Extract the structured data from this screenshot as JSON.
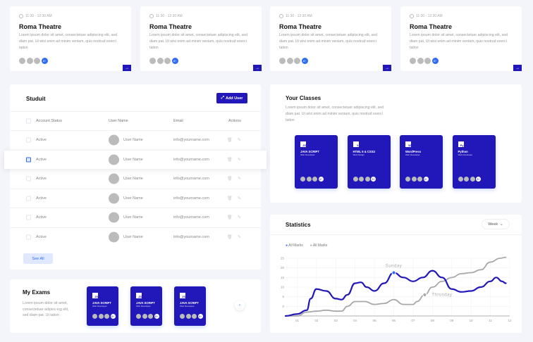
{
  "events": [
    {
      "time": "11:30 - 12:30 AM",
      "title": "Roma Theatre",
      "text": "Lorem ipsum dolor sit amet, consectetuer adipiscing elit, sed diam pat. Ut wisi enim ad minim veniam, quis nostrud exerci tation",
      "more": "8+"
    },
    {
      "time": "11:30 - 12:30 AM",
      "title": "Roma Theatre",
      "text": "Lorem ipsum dolor sit amet, consectetuer adipiscing elit, sed diam pat. Ut wisi enim ad minim veniam, quis nostrud exerci tation",
      "more": "8+"
    },
    {
      "time": "11:30 - 12:30 AM",
      "title": "Roma Theatre",
      "text": "Lorem ipsum dolor sit amet, consectetuer adipiscing elit, sed diam pat. Ut wisi enim ad minim veniam, quis nostrud exerci tation",
      "more": "8+"
    },
    {
      "time": "11:30 - 12:30 AM",
      "title": "Roma Theatre",
      "text": "Lorem ipsum dolor sit amet, consectetuer adipiscing elit, sed diam pat. Ut wisi enim ad minim veniam, quis nostrud exerci tation",
      "more": "8+"
    }
  ],
  "users": {
    "title": "Studuit",
    "add_label": "Add User",
    "columns": [
      "Account Status",
      "User Name",
      "Email",
      "Actions"
    ],
    "rows": [
      {
        "status": "Active",
        "name": "User Name",
        "email": "info@yourname.com",
        "checked": false
      },
      {
        "status": "Active",
        "name": "User Name",
        "email": "info@yourname.com",
        "checked": true
      },
      {
        "status": "Active",
        "name": "User Name",
        "email": "info@yourname.com",
        "checked": false
      },
      {
        "status": "Active",
        "name": "User Name",
        "email": "info@yourname.com",
        "checked": false
      },
      {
        "status": "Active",
        "name": "User Name",
        "email": "info@yourname.com",
        "checked": false
      },
      {
        "status": "Active",
        "name": "User Name",
        "email": "info@yourname.com",
        "checked": false
      }
    ],
    "see_all": "See All"
  },
  "exams": {
    "title": "My Exams",
    "text": "Lorem ipsum dolor sit amet, consectetuer adipisc-ing elit, sed diam pat. Ut tation",
    "cards": [
      {
        "name": "JAVA SCRIPT",
        "sub": "Web Developer",
        "logo": "JS"
      },
      {
        "name": "JAVA SCRIPT",
        "sub": "Web Developer",
        "logo": "JS"
      },
      {
        "name": "JAVA SCRIPT",
        "sub": "Web Developer",
        "logo": "JS"
      }
    ]
  },
  "classes": {
    "title": "Your Classes",
    "text": "Lorem ipsum dolor sit amet, consectetuer adipiscing elit, sed diam pat. Ut wisi enim ad minim veniam, quis nostrud exerci tation",
    "cards": [
      {
        "name": "JAVA SCRIPT",
        "sub": "Web Developer",
        "logo": "JS"
      },
      {
        "name": "HTML 5 & CSS3",
        "sub": "Web Design",
        "logo": "5"
      },
      {
        "name": "WordPress",
        "sub": "Web Developer",
        "logo": "W"
      },
      {
        "name": "Python",
        "sub": "Web Developer",
        "logo": "Py"
      }
    ]
  },
  "stats": {
    "title": "Statistics",
    "period": "Week"
  },
  "colors": {
    "accent": "#2217b8",
    "blue": "#2f6cf5",
    "gray": "#a8a8a8"
  },
  "chart_data": {
    "type": "line",
    "xticks": [
      "01",
      "02",
      "03",
      "04",
      "05",
      "06",
      "07",
      "08",
      "09",
      "10",
      "11",
      "12"
    ],
    "yticks": [
      0,
      5,
      10,
      15,
      20,
      25
    ],
    "ylim": [
      -5,
      25
    ],
    "xlim": [
      0.4,
      12
    ],
    "grid": true,
    "legend": "top-left",
    "series": [
      {
        "name": "All Marks",
        "color": "#2217b8",
        "points": [
          [
            0.4,
            -5
          ],
          [
            1,
            -4
          ],
          [
            1.5,
            -2
          ],
          [
            1.7,
            4
          ],
          [
            2,
            9
          ],
          [
            2.5,
            8
          ],
          [
            3,
            4
          ],
          [
            3.3,
            3.5
          ],
          [
            3.6,
            6
          ],
          [
            4,
            12
          ],
          [
            4.3,
            12.5
          ],
          [
            4.6,
            10
          ],
          [
            5,
            8
          ],
          [
            5.5,
            12
          ],
          [
            6,
            17.5
          ],
          [
            6.5,
            15
          ],
          [
            7,
            13
          ],
          [
            7.5,
            15
          ],
          [
            8,
            18.5
          ],
          [
            8.5,
            15
          ],
          [
            9,
            9
          ],
          [
            9.5,
            7.5
          ],
          [
            10,
            8
          ],
          [
            10.5,
            10
          ],
          [
            11,
            13
          ],
          [
            11.3,
            15
          ],
          [
            11.6,
            13
          ],
          [
            11.8,
            12
          ]
        ]
      },
      {
        "name": "All Marks",
        "color": "#a8a8a8",
        "points": [
          [
            0.4,
            -5
          ],
          [
            1,
            -5
          ],
          [
            1.5,
            -3
          ],
          [
            2,
            -2.5
          ],
          [
            2.5,
            -2
          ],
          [
            3,
            -2.5
          ],
          [
            3.3,
            -2.5
          ],
          [
            3.6,
            0
          ],
          [
            4,
            2.5
          ],
          [
            4.5,
            2.5
          ],
          [
            5,
            1
          ],
          [
            5.5,
            1.5
          ],
          [
            6,
            3.5
          ],
          [
            6.5,
            1
          ],
          [
            7,
            1
          ],
          [
            7.2,
            2.5
          ],
          [
            7.6,
            6
          ],
          [
            8,
            10
          ],
          [
            8.5,
            13
          ],
          [
            9,
            15
          ],
          [
            9.5,
            17
          ],
          [
            10,
            17.5
          ],
          [
            10.5,
            19
          ],
          [
            11,
            23
          ],
          [
            11.5,
            25
          ],
          [
            11.8,
            25.5
          ]
        ]
      }
    ],
    "annotations": [
      {
        "label": "Sunday",
        "x": 6,
        "y": 17.5,
        "series": 0
      },
      {
        "label": "Thrusday",
        "x": 7.6,
        "y": 6,
        "series": 1
      }
    ]
  }
}
